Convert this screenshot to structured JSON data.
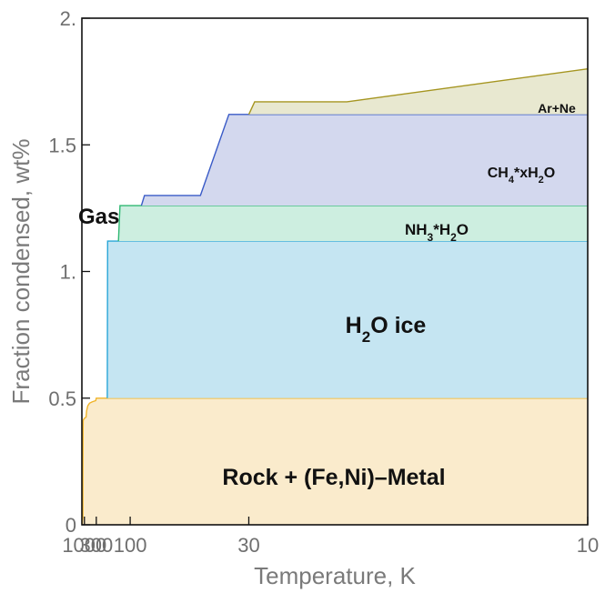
{
  "chart_data": {
    "type": "area",
    "xlabel": "Temperature, K",
    "ylabel": "Fraction condensed, wt%",
    "xscale": "reciprocal",
    "xlim": [
      2000,
      10
    ],
    "ylim": [
      0,
      2
    ],
    "xticks": [
      {
        "value": 1000,
        "label": "1000"
      },
      {
        "value": 300,
        "label": "300"
      },
      {
        "value": 100,
        "label": "100"
      },
      {
        "value": 30,
        "label": "30"
      },
      {
        "value": 10,
        "label": "10"
      }
    ],
    "yticks": [
      {
        "value": 0,
        "label": "0"
      },
      {
        "value": 0.5,
        "label": "0.5"
      },
      {
        "value": 1,
        "label": "1."
      },
      {
        "value": 1.5,
        "label": "1.5"
      },
      {
        "value": 2,
        "label": "2."
      }
    ],
    "grid": false,
    "series": [
      {
        "name": "Rock + (Fe,Ni)–Metal",
        "fill": "#faebcc",
        "stroke": "#f0b429",
        "top": [
          [
            1800,
            0.0
          ],
          [
            1600,
            0.02
          ],
          [
            1450,
            0.03
          ],
          [
            1420,
            0.2
          ],
          [
            1380,
            0.38
          ],
          [
            1330,
            0.41
          ],
          [
            1250,
            0.415
          ],
          [
            1000,
            0.42
          ],
          [
            760,
            0.425
          ],
          [
            700,
            0.45
          ],
          [
            600,
            0.47
          ],
          [
            500,
            0.48
          ],
          [
            400,
            0.485
          ],
          [
            310,
            0.49
          ],
          [
            300,
            0.5
          ],
          [
            10,
            0.5
          ]
        ]
      },
      {
        "name": "H2O ice",
        "label_parts": [
          "H",
          "2",
          "O ice"
        ],
        "fill": "#c5e5f2",
        "stroke": "#2aa6d8",
        "top": [
          [
            182,
            0.5
          ],
          [
            180,
            1.12
          ],
          [
            10,
            1.12
          ]
        ]
      },
      {
        "name": "NH3*H2O",
        "label_parts": [
          "NH",
          "3",
          "*H",
          "2",
          "O"
        ],
        "fill": "#cdeee0",
        "stroke": "#2eb872",
        "top": [
          [
            130,
            1.12
          ],
          [
            125,
            1.26
          ],
          [
            10,
            1.26
          ]
        ]
      },
      {
        "name": "CH4*xH2O",
        "label_parts": [
          "CH",
          "4",
          "*xH",
          "2",
          "O"
        ],
        "fill": "#d3d8ee",
        "stroke": "#3a5bc7",
        "top": [
          [
            82,
            1.26
          ],
          [
            78,
            1.3
          ],
          [
            42,
            1.3
          ],
          [
            34,
            1.62
          ],
          [
            10,
            1.62
          ]
        ]
      },
      {
        "name": "Ar+Ne",
        "fill": "#e8e8d0",
        "stroke": "#a59520",
        "top": [
          [
            30,
            1.62
          ],
          [
            29,
            1.67
          ],
          [
            19,
            1.67
          ],
          [
            10,
            1.8
          ]
        ]
      }
    ],
    "annotations": [
      {
        "text": "Gas",
        "x": 260,
        "y": 1.22
      }
    ]
  }
}
